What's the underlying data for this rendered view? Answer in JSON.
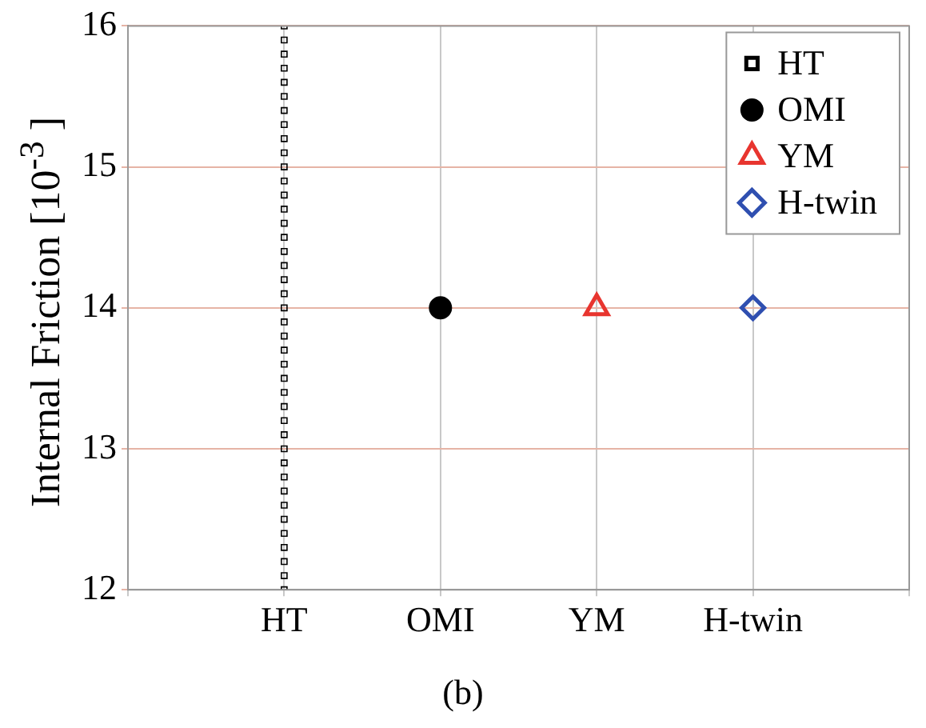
{
  "chart_data": {
    "type": "scatter",
    "ylabel": "Internal Friction [10$^{-3}$ ]",
    "annotations": [
      "(b)"
    ],
    "categories": [
      null,
      "HT",
      "OMI",
      "YM",
      "H-twin",
      null
    ],
    "ylim": [
      12,
      16
    ],
    "yticks": [
      12,
      13,
      14,
      15,
      16
    ],
    "grid": true,
    "legend": "top right",
    "series": [
      {
        "name": "HT",
        "color": "#000000",
        "marker": "square",
        "x": [
          "HT",
          "HT",
          "HT",
          "HT",
          "HT",
          "HT",
          "HT",
          "HT",
          "HT",
          "HT",
          "HT",
          "HT",
          "HT",
          "HT",
          "HT",
          "HT",
          "HT",
          "HT",
          "HT",
          "HT",
          "HT",
          "HT",
          "HT",
          "HT",
          "HT",
          "HT",
          "HT",
          "HT",
          "HT",
          "HT",
          "HT",
          "HT",
          "HT",
          "HT",
          "HT",
          "HT",
          "HT",
          "HT",
          "HT",
          "HT",
          "HT"
        ],
        "values": [
          12.0,
          12.1,
          12.2,
          12.3,
          12.4,
          12.5,
          12.6,
          12.7,
          12.8,
          12.9,
          13.0,
          13.1,
          13.2,
          13.3,
          13.4,
          13.5,
          13.6,
          13.7,
          13.8,
          13.9,
          14.0,
          14.1,
          14.2,
          14.3,
          14.4,
          14.5,
          14.6,
          14.7,
          14.8,
          14.9,
          15.0,
          15.1,
          15.2,
          15.3,
          15.4,
          15.5,
          15.6,
          15.7,
          15.8,
          15.9,
          16.0
        ]
      },
      {
        "name": "OMI",
        "color": "#000000",
        "marker": "circle",
        "x": [
          "OMI"
        ],
        "values": [
          14
        ]
      },
      {
        "name": "YM",
        "color": "#e8352f",
        "marker": "triangle",
        "x": [
          "YM"
        ],
        "values": [
          14
        ]
      },
      {
        "name": "H-twin",
        "color": "#2f4fb0",
        "marker": "diamond",
        "x": [
          "H-twin"
        ],
        "values": [
          14
        ]
      }
    ]
  }
}
